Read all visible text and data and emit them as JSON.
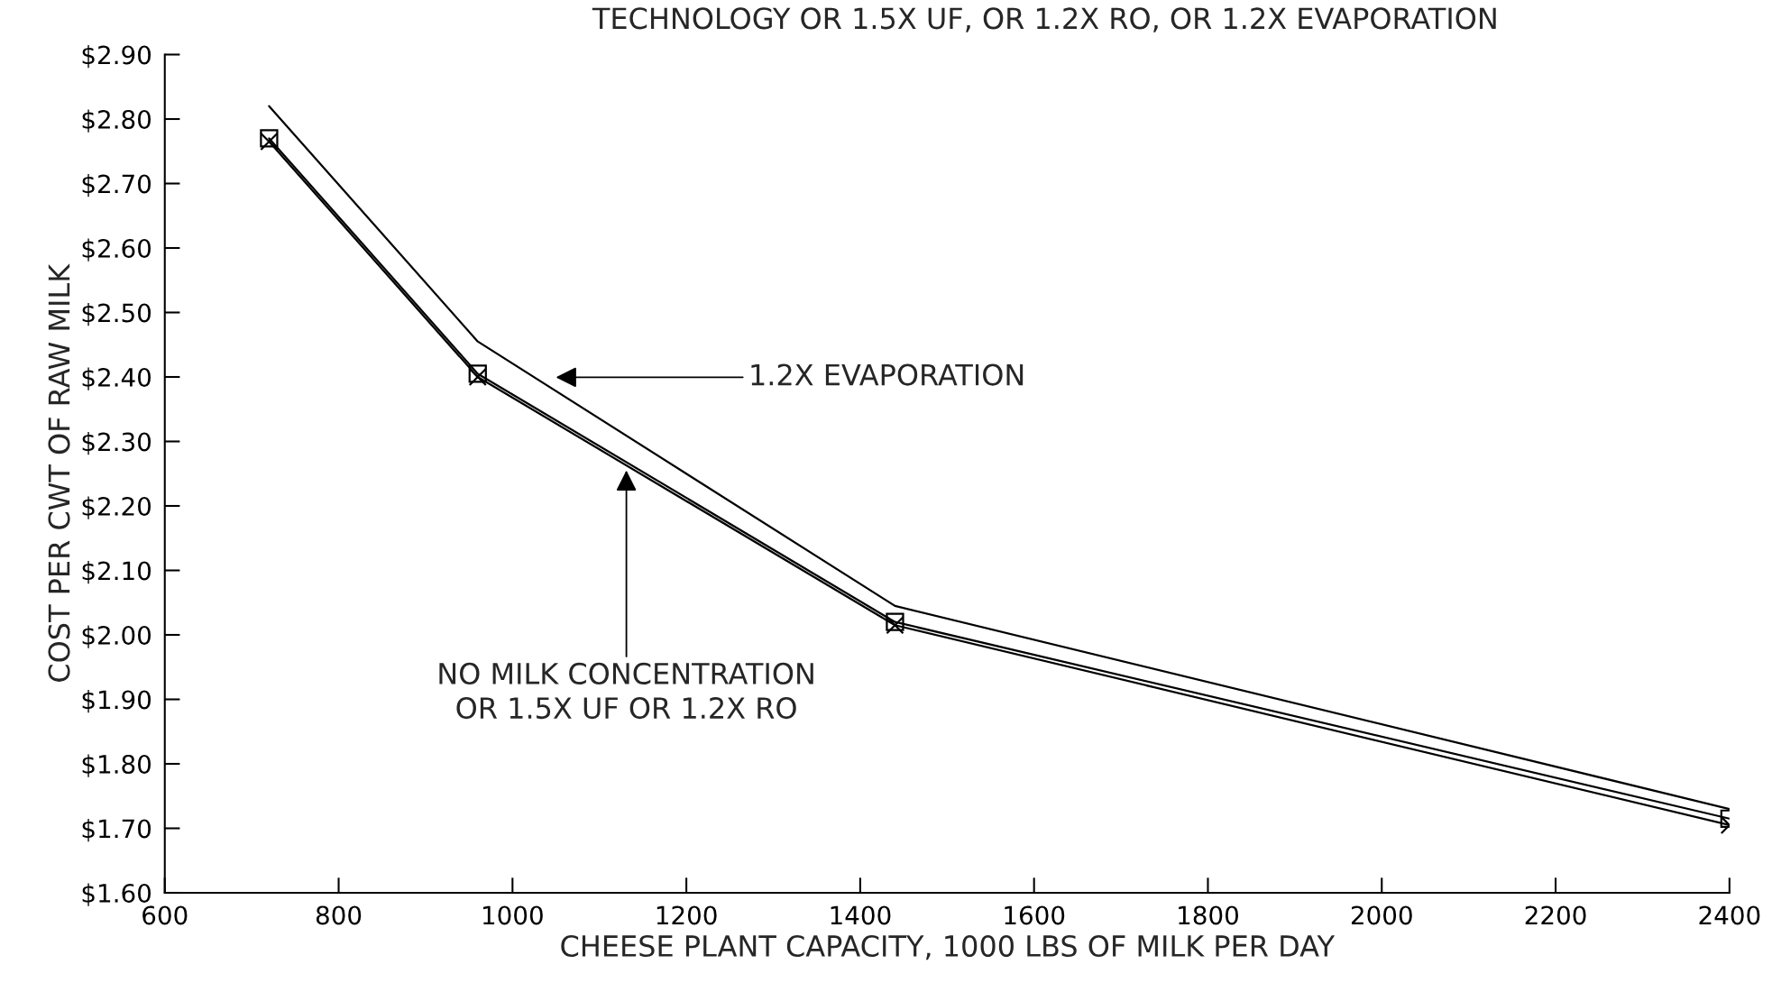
{
  "chart_data": {
    "type": "line",
    "title": "TECHNOLOGY OR 1.5X UF, OR 1.2X RO, OR 1.2X EVAPORATION",
    "xlabel": "CHEESE PLANT CAPACITY, 1000 LBS OF MILK PER DAY",
    "ylabel": "COST PER CWT OF RAW MILK",
    "x": [
      720,
      960,
      1440,
      2400
    ],
    "series": [
      {
        "color": "#000000",
        "values": [
          2.82,
          2.455,
          2.045,
          1.73
        ],
        "marker": "none"
      },
      {
        "color": "#000000",
        "values": [
          2.77,
          2.405,
          2.02,
          1.715
        ],
        "marker": "square"
      },
      {
        "color": "#000000",
        "values": [
          2.765,
          2.4,
          2.015,
          1.705
        ],
        "marker": "cross"
      }
    ],
    "xlim": [
      600,
      2400
    ],
    "xticks": [
      600,
      800,
      1000,
      1200,
      1400,
      1600,
      1800,
      2000,
      2200,
      2400
    ],
    "ylim": [
      1.6,
      2.9
    ],
    "yticks": [
      {
        "value": 1.6,
        "label": "$1.60"
      },
      {
        "value": 1.7,
        "label": "$1.70"
      },
      {
        "value": 1.8,
        "label": "$1.80"
      },
      {
        "value": 1.9,
        "label": "$1.90"
      },
      {
        "value": 2.0,
        "label": "$2.00"
      },
      {
        "value": 2.1,
        "label": "$2.10"
      },
      {
        "value": 2.2,
        "label": "$2.20"
      },
      {
        "value": 2.3,
        "label": "$2.30"
      },
      {
        "value": 2.4,
        "label": "$2.40"
      },
      {
        "value": 2.5,
        "label": "$2.50"
      },
      {
        "value": 2.6,
        "label": "$2.60"
      },
      {
        "value": 2.7,
        "label": "$2.70"
      },
      {
        "value": 2.8,
        "label": "$2.80"
      },
      {
        "value": 2.9,
        "label": "$2.90"
      }
    ],
    "annotations": [
      "1.2X EVAPORATION",
      "NO MILK CONCENTRATION\nOR 1.5X UF OR 1.2X RO"
    ],
    "grid": false,
    "line_style": "solid"
  }
}
